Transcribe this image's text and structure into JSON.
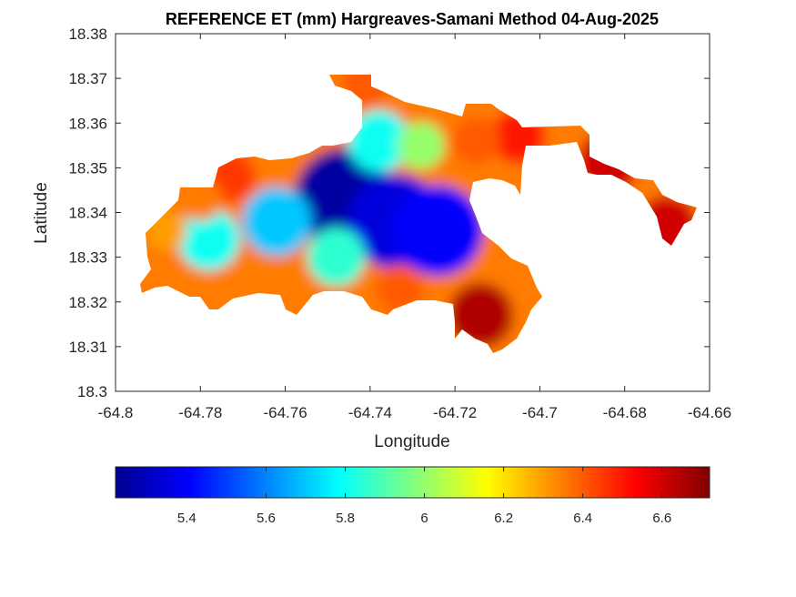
{
  "chart_data": {
    "type": "heatmap",
    "title": "REFERENCE ET (mm) Hargreaves-Samani Method  04-Aug-2025",
    "xlabel": "Longitude",
    "ylabel": "Latitude",
    "xlim": [
      -64.8,
      -64.66
    ],
    "ylim": [
      18.3,
      18.38
    ],
    "xticks": [
      "-64.8",
      "-64.78",
      "-64.76",
      "-64.74",
      "-64.72",
      "-64.7",
      "-64.68",
      "-64.66"
    ],
    "yticks": [
      "18.3",
      "18.31",
      "18.32",
      "18.33",
      "18.34",
      "18.35",
      "18.36",
      "18.37",
      "18.38"
    ],
    "grid": false,
    "colormap": "jet",
    "colorbar": {
      "position": "bottom",
      "range": [
        5.22,
        6.72
      ],
      "ticks": [
        "5.4",
        "5.6",
        "5.8",
        "6",
        "6.2",
        "6.4",
        "6.6"
      ],
      "colors": [
        "#00008f",
        "#0000ff",
        "#00ffff",
        "#ffff00",
        "#ff0000",
        "#800000"
      ]
    },
    "field_hotspots": [
      {
        "lon": -64.746,
        "lat": 18.343,
        "value": 5.25
      },
      {
        "lon": -64.734,
        "lat": 18.338,
        "value": 5.35
      },
      {
        "lon": -64.724,
        "lat": 18.336,
        "value": 5.4
      },
      {
        "lon": -64.762,
        "lat": 18.338,
        "value": 5.7
      },
      {
        "lon": -64.778,
        "lat": 18.334,
        "value": 5.8
      },
      {
        "lon": -64.748,
        "lat": 18.33,
        "value": 5.85
      },
      {
        "lon": -64.738,
        "lat": 18.356,
        "value": 5.8
      },
      {
        "lon": -64.728,
        "lat": 18.355,
        "value": 6.0
      },
      {
        "lon": -64.788,
        "lat": 18.336,
        "value": 6.3
      },
      {
        "lon": -64.78,
        "lat": 18.343,
        "value": 6.35
      },
      {
        "lon": -64.773,
        "lat": 18.348,
        "value": 6.45
      },
      {
        "lon": -64.741,
        "lat": 18.369,
        "value": 6.4
      },
      {
        "lon": -64.715,
        "lat": 18.356,
        "value": 6.4
      },
      {
        "lon": -64.733,
        "lat": 18.323,
        "value": 6.4
      },
      {
        "lon": -64.714,
        "lat": 18.317,
        "value": 6.65
      },
      {
        "lon": -64.705,
        "lat": 18.357,
        "value": 6.5
      },
      {
        "lon": -64.684,
        "lat": 18.351,
        "value": 6.6
      },
      {
        "lon": -64.67,
        "lat": 18.337,
        "value": 6.6
      }
    ]
  }
}
